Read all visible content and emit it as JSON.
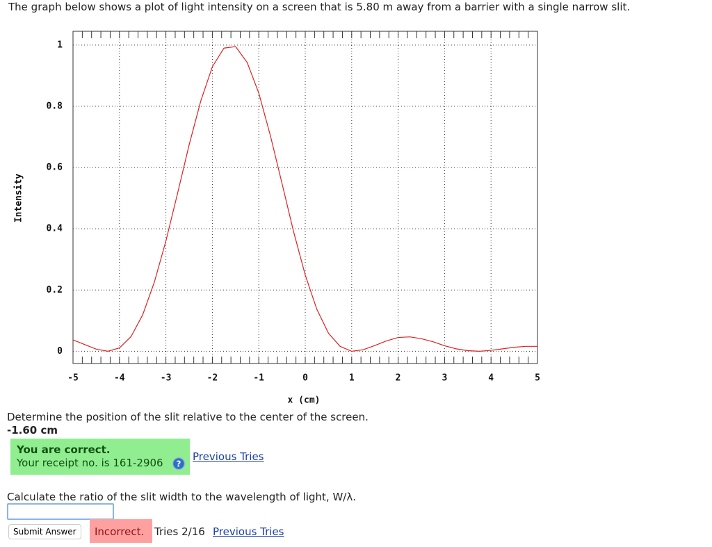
{
  "question": "The graph below shows a plot of light intensity on a screen that is 5.80 m away from a barrier with a single narrow slit.",
  "chart_data": {
    "type": "line",
    "x_label": "x (cm)",
    "y_label": "Intensity",
    "x": [
      -5,
      -4.75,
      -4.5,
      -4.25,
      -4,
      -3.75,
      -3.5,
      -3.25,
      -3,
      -2.75,
      -2.5,
      -2.25,
      -2,
      -1.75,
      -1.5,
      -1.25,
      -1,
      -0.75,
      -0.5,
      -0.25,
      0,
      0.25,
      0.5,
      0.75,
      1,
      1.25,
      1.5,
      1.75,
      2,
      2.25,
      2.5,
      2.75,
      3,
      3.25,
      3.5,
      3.75,
      4,
      4.25,
      4.5,
      4.75,
      5
    ],
    "series": [
      {
        "color": "#e02020",
        "values": [
          0.037,
          0.022,
          0.007,
          0,
          0.011,
          0.048,
          0.119,
          0.225,
          0.36,
          0.515,
          0.674,
          0.817,
          0.929,
          0.99,
          0.995,
          0.943,
          0.843,
          0.704,
          0.548,
          0.39,
          0.249,
          0.137,
          0.059,
          0.016,
          0,
          0.005,
          0.019,
          0.034,
          0.045,
          0.047,
          0.041,
          0.031,
          0.018,
          0.008,
          0.002,
          0,
          0.003,
          0.008,
          0.013,
          0.016,
          0.016
        ]
      }
    ],
    "xlim": [
      -5,
      5
    ],
    "xticks": [
      -5,
      -4,
      -3,
      -2,
      -1,
      0,
      1,
      2,
      3,
      4,
      5
    ],
    "ylim": [
      -0.04,
      1.045
    ],
    "yticks": [
      0,
      0.2,
      0.4,
      0.6,
      0.8,
      1
    ],
    "grid": true
  },
  "part1": {
    "prompt": "Determine the position of the slit relative to the center of the screen.",
    "answer": "-1.60 cm",
    "status": "You are correct.",
    "receipt": "Your receipt no. is 161-2906",
    "link": "Previous Tries"
  },
  "part2": {
    "prompt": "Calculate the ratio of the slit width to the wavelength of light, W/λ.",
    "button": "Submit Answer",
    "status": "Incorrect.",
    "tries": "Tries 2/16",
    "link": "Previous Tries"
  }
}
